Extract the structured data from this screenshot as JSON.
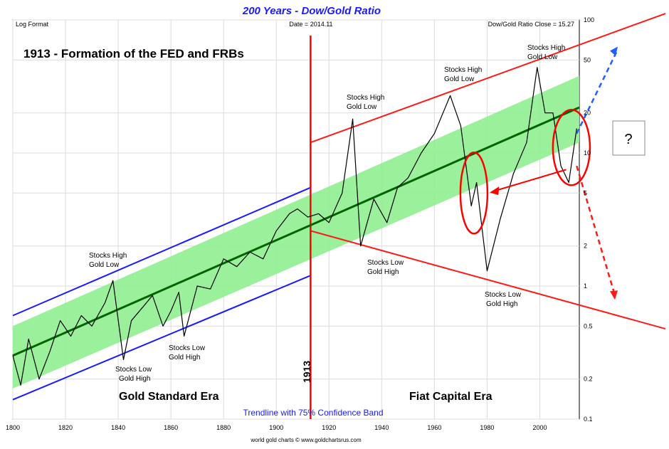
{
  "chart_data": {
    "type": "line",
    "title": "200 Years - Dow/Gold Ratio",
    "subtitle_left": "Log Format",
    "subtitle_date": "Date = 2014.11",
    "subtitle_close": "Dow/Gold Ratio Close = 15.27",
    "scale": "log",
    "xlim": [
      1800,
      2015
    ],
    "ylim": [
      0.1,
      100
    ],
    "x_ticks": [
      1800,
      1820,
      1840,
      1860,
      1880,
      1900,
      1920,
      1940,
      1960,
      1980,
      2000
    ],
    "y_ticks": [
      0.1,
      0.2,
      0.5,
      1,
      2,
      5,
      10,
      20,
      50,
      100
    ],
    "grid": true,
    "series": [
      {
        "name": "Dow/Gold Ratio",
        "color": "#000000",
        "x": [
          1800,
          1803,
          1806,
          1810,
          1814,
          1818,
          1822,
          1826,
          1830,
          1835,
          1838,
          1842,
          1845,
          1850,
          1853,
          1857,
          1860,
          1863,
          1865,
          1870,
          1875,
          1880,
          1885,
          1890,
          1895,
          1900,
          1905,
          1908,
          1912,
          1916,
          1920,
          1925,
          1929,
          1932,
          1937,
          1942,
          1946,
          1950,
          1955,
          1960,
          1966,
          1970,
          1974,
          1976,
          1980,
          1985,
          1990,
          1995,
          1999,
          2002,
          2005,
          2008,
          2011,
          2014
        ],
        "y": [
          0.3,
          0.18,
          0.4,
          0.2,
          0.32,
          0.55,
          0.42,
          0.6,
          0.5,
          0.75,
          1.1,
          0.28,
          0.55,
          0.72,
          0.85,
          0.5,
          0.65,
          0.9,
          0.42,
          1.0,
          0.95,
          1.6,
          1.4,
          1.8,
          1.6,
          2.6,
          3.5,
          3.8,
          3.3,
          3.5,
          3.0,
          5.0,
          18.0,
          2.0,
          4.5,
          3.0,
          5.5,
          6.5,
          10.0,
          14.0,
          27.0,
          16.0,
          4.0,
          6.0,
          1.3,
          3.2,
          7.0,
          12.0,
          44.0,
          20.0,
          20.0,
          8.0,
          6.0,
          15.27
        ]
      },
      {
        "name": "Trendline",
        "color": "#006400",
        "x": [
          1800,
          2015
        ],
        "y": [
          0.3,
          22.0
        ]
      }
    ],
    "confidence_band": {
      "label": "Trendline with 75% Confidence Band",
      "lower": [
        0.17,
        12.0
      ],
      "upper": [
        0.5,
        38.0
      ],
      "color": "#90ee90"
    },
    "gold_standard_channel": {
      "color": "#1a1aff",
      "upper": [
        [
          1800,
          0.6
        ],
        [
          1913,
          5.5
        ]
      ],
      "lower": [
        [
          1800,
          0.14
        ],
        [
          1913,
          1.2
        ]
      ]
    },
    "fiat_channel": {
      "color": "#ff1a1a",
      "upper": [
        [
          1913,
          12.0
        ],
        [
          2015,
          65.0
        ]
      ],
      "lower": [
        [
          1913,
          2.6
        ],
        [
          2015,
          0.72
        ]
      ]
    },
    "event_line": {
      "x": 1913,
      "label": "1913",
      "color": "#ff0000"
    },
    "projection_up": {
      "from": [
        2014,
        14.0
      ],
      "to": [
        2015,
        60.0
      ],
      "color": "#1f5fff"
    },
    "projection_down": {
      "from": [
        2014,
        8.0
      ],
      "to": [
        2015,
        0.85
      ],
      "color": "#ff1a1a"
    },
    "annotations": {
      "headline": "1913 - Formation of the FED and FRBs",
      "era_left": "Gold Standard Era",
      "era_right": "Fiat Capital Era",
      "stocks_high": "Stocks High",
      "gold_low": "Gold Low",
      "stocks_low": "Stocks Low",
      "gold_high": "Gold High",
      "question": "?",
      "trendline_note": "Trendline with 75% Confidence Band",
      "footer": "world gold charts © www.goldchartsrus.com"
    }
  }
}
